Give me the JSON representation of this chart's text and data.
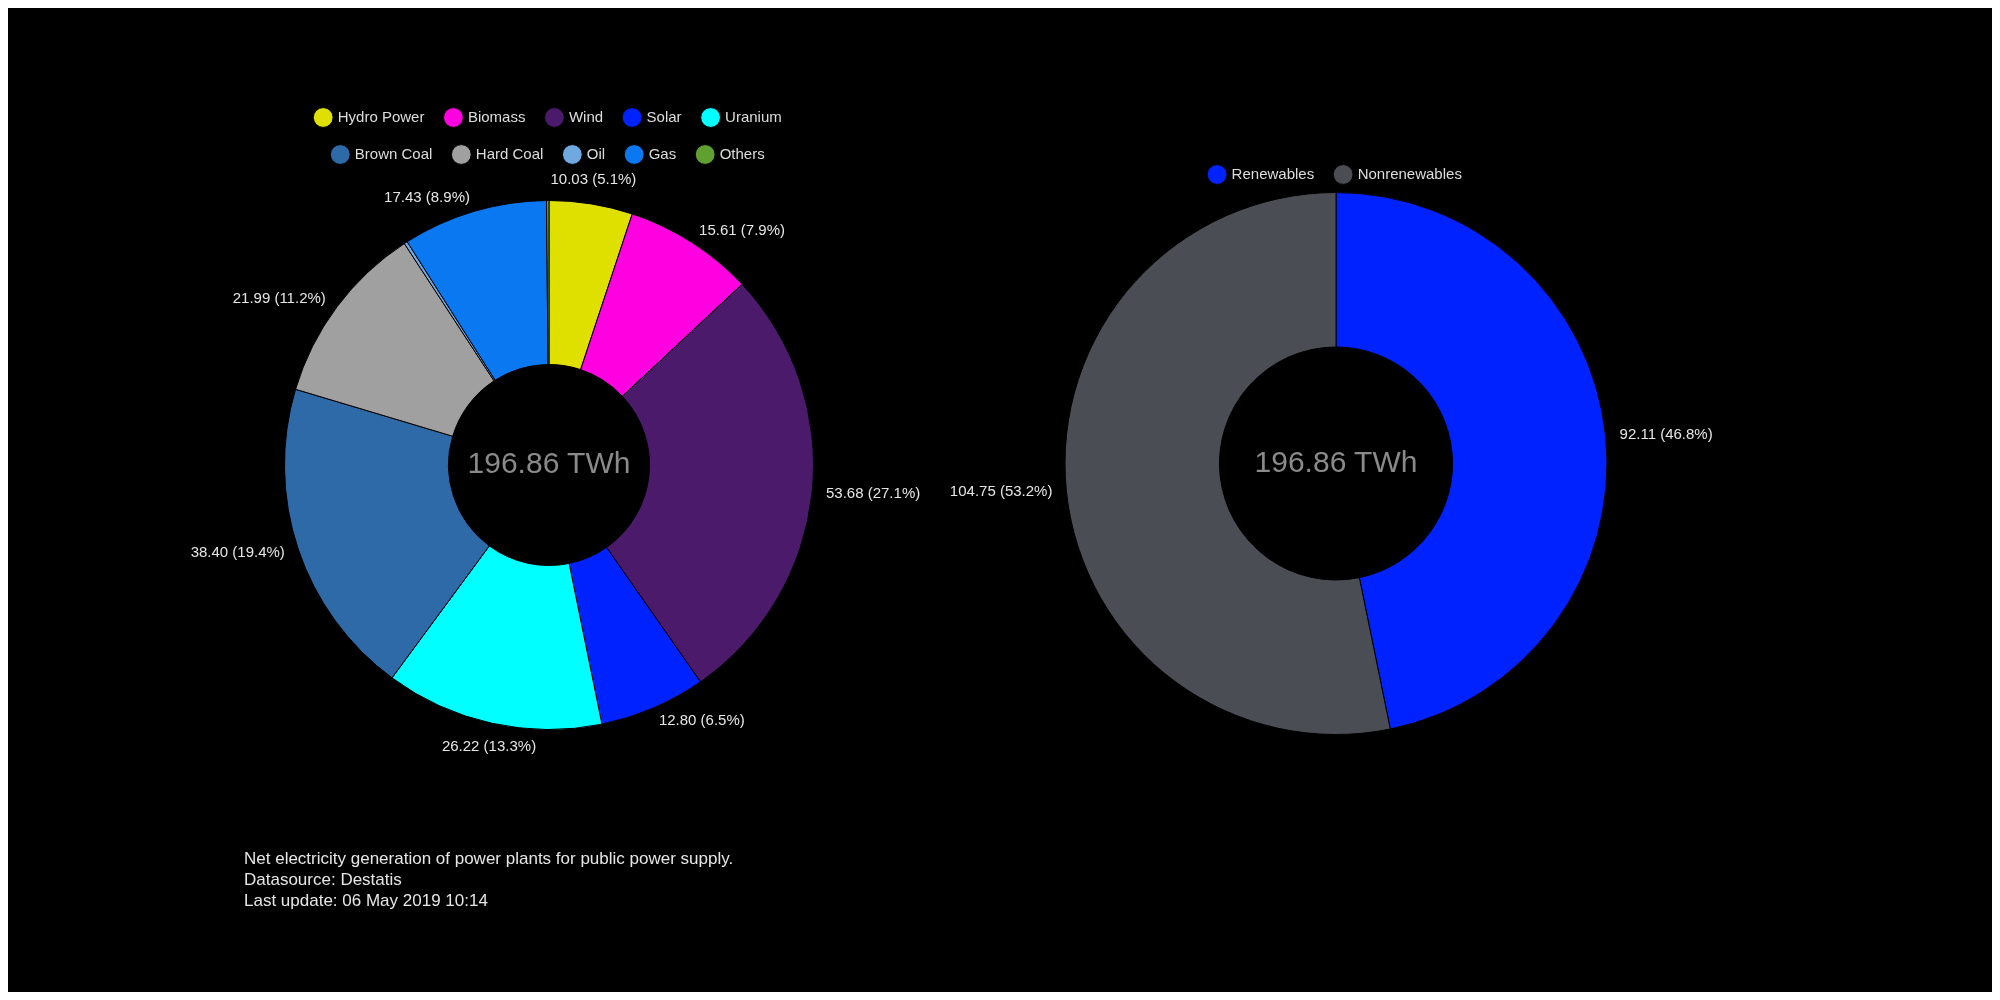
{
  "chart_data": [
    {
      "type": "donut",
      "categories": [
        "Hydro Power",
        "Biomass",
        "Wind",
        "Solar",
        "Uranium",
        "Brown Coal",
        "Hard Coal",
        "Oil",
        "Gas",
        "Others"
      ],
      "values": [
        10.03,
        15.61,
        53.68,
        12.8,
        26.22,
        38.4,
        21.99,
        0.4,
        17.43,
        0.3
      ],
      "colors": [
        "#e0e000",
        "#ff00e0",
        "#4b1a6b",
        "#0022ff",
        "#00ffff",
        "#2f6aa8",
        "#a0a0a0",
        "#70a8e0",
        "#0a78f0",
        "#60a030"
      ],
      "value_labels": [
        "10.03 (5.1%)",
        "15.61 (7.9%)",
        "53.68 (27.1%)",
        "12.80 (6.5%)",
        "26.22 (13.3%)",
        "38.40 (19.4%)",
        "21.99 (11.2%)",
        null,
        "17.43 (8.9%)",
        null
      ],
      "legend": "top",
      "annotations": [
        "196.86 TWh",
        "Net electricity generation of power plants for public power supply.",
        "Datasource: Destatis",
        "Last update: 06 May 2019 10:14"
      ]
    },
    {
      "type": "donut",
      "categories": [
        "Renewables",
        "Nonrenewables"
      ],
      "values": [
        92.11,
        104.75
      ],
      "colors": [
        "#0022ff",
        "#4a4e54"
      ],
      "value_labels": [
        "92.11 (46.8%)",
        "104.75 (53.2%)"
      ],
      "legend": "top",
      "annotations": [
        "196.86 TWh"
      ]
    }
  ]
}
